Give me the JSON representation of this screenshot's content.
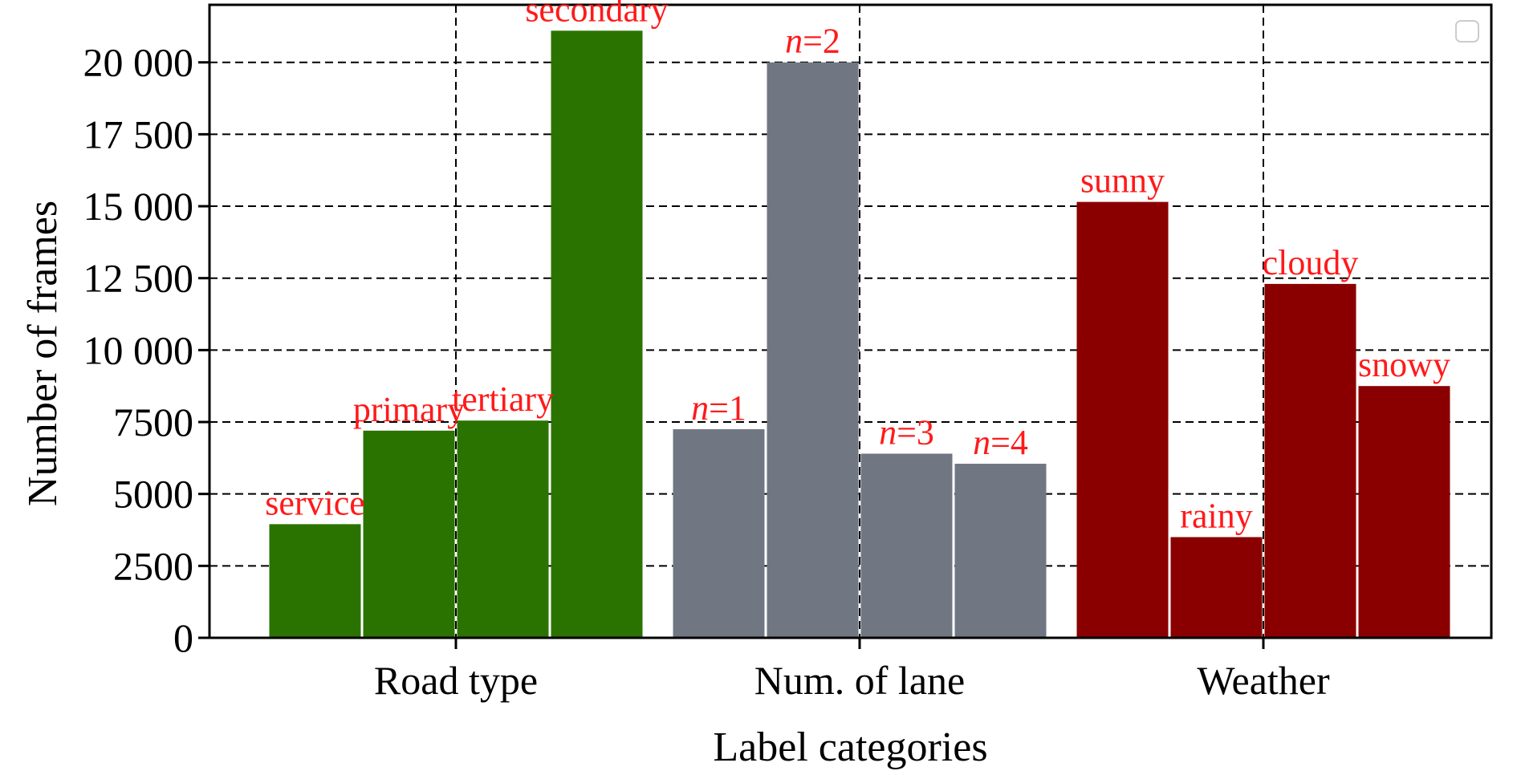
{
  "chart_data": {
    "type": "bar",
    "title": "",
    "xlabel": "Label categories",
    "ylabel": "Number of frames",
    "ylim": [
      0,
      22000
    ],
    "yticks": [
      0,
      2500,
      5000,
      7500,
      10000,
      12500,
      15000,
      17500,
      20000
    ],
    "ytick_labels": [
      "0",
      "2500",
      "5000",
      "7500",
      "10 000",
      "12 500",
      "15 000",
      "17 500",
      "20 000"
    ],
    "grid": true,
    "legend": {
      "entries": [],
      "placement": "top-right"
    },
    "label_color": "#ff1a1a",
    "groups": [
      {
        "name": "Road type",
        "color": "#2a7300",
        "bars": [
          {
            "label": "service",
            "value": 3950
          },
          {
            "label": "primary",
            "value": 7200
          },
          {
            "label": "tertiary",
            "value": 7550
          },
          {
            "label": "secondary",
            "value": 21100
          }
        ]
      },
      {
        "name": "Num. of lane",
        "color": "#707783",
        "bars": [
          {
            "label": "n=1",
            "value": 7250
          },
          {
            "label": "n=2",
            "value": 20000
          },
          {
            "label": "n=3",
            "value": 6400
          },
          {
            "label": "n=4",
            "value": 6050
          }
        ]
      },
      {
        "name": "Weather",
        "color": "#8a0000",
        "bars": [
          {
            "label": "sunny",
            "value": 15150
          },
          {
            "label": "rainy",
            "value": 3500
          },
          {
            "label": "cloudy",
            "value": 12300
          },
          {
            "label": "snowy",
            "value": 8750
          }
        ]
      }
    ]
  }
}
